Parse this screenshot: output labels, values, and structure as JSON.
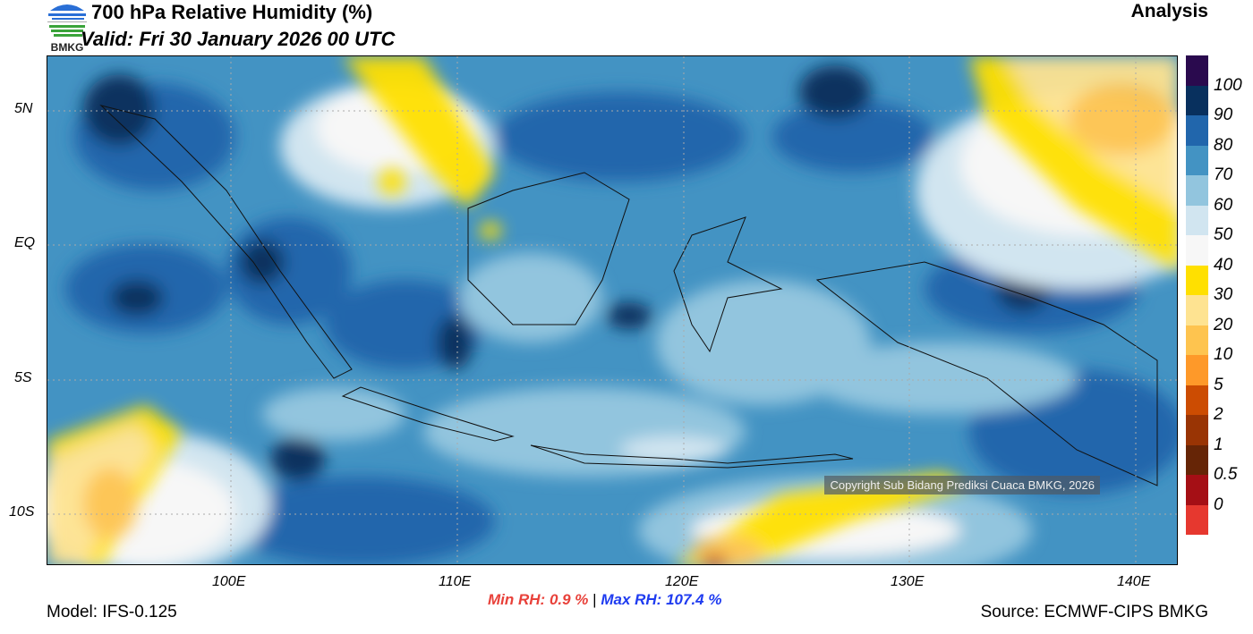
{
  "header": {
    "title": "700 hPa Relative Humidity (%)",
    "valid": "Valid: Fri 30 January 2026 00 UTC",
    "analysis": "Analysis",
    "logo_text": "BMKG"
  },
  "map": {
    "lat_labels": [
      "5N",
      "EQ",
      "5S",
      "10S"
    ],
    "lon_labels": [
      "100E",
      "110E",
      "120E",
      "130E",
      "140E"
    ],
    "copyright": "Copyright Sub Bidang Prediksi Cuaca BMKG, 2026"
  },
  "colorbar": {
    "colors": [
      "#2a0a4e",
      "#08305e",
      "#2166ac",
      "#4393c3",
      "#92c5de",
      "#d1e5f0",
      "#f7f7f7",
      "#ffe000",
      "#fee391",
      "#fec44f",
      "#fe9929",
      "#cc4c02",
      "#993404",
      "#662506",
      "#a50f15",
      "#e6382f"
    ],
    "labels": [
      "100",
      "90",
      "80",
      "70",
      "60",
      "50",
      "40",
      "30",
      "20",
      "10",
      "5",
      "2",
      "1",
      "0.5",
      "0"
    ]
  },
  "footer": {
    "min_label": "Min RH:",
    "min_value": "0.9 %",
    "separator": "|",
    "max_label": "Max RH:",
    "max_value": "107.4 %",
    "model": "Model: IFS-0.125",
    "source": "Source: ECMWF-CIPS BMKG"
  }
}
